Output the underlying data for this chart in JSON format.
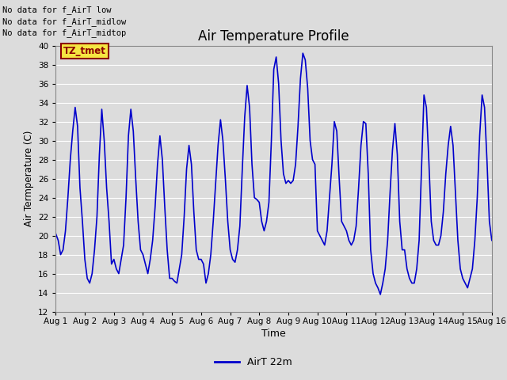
{
  "title": "Air Temperature Profile",
  "ylabel": "Air Termperature (C)",
  "xlabel": "Time",
  "legend_label": "AirT 22m",
  "line_color": "#0000CC",
  "background_color": "#DCDCDC",
  "ylim": [
    12,
    40
  ],
  "no_data_texts": [
    "No data for f_AirT low",
    "No data for f_AirT_midlow",
    "No data for f_AirT_midtop"
  ],
  "tz_label": "TZ_tmet",
  "x_tick_labels": [
    "Aug 1",
    "Aug 2",
    "Aug 3",
    "Aug 4",
    "Aug 5",
    "Aug 6",
    "Aug 7",
    "Aug 8",
    "Aug 9",
    "Aug 10",
    "Aug 11",
    "Aug 12",
    "Aug 13",
    "Aug 14",
    "Aug 15",
    "Aug 16"
  ],
  "time_days": [
    0.0,
    0.083,
    0.167,
    0.25,
    0.333,
    0.417,
    0.5,
    0.583,
    0.667,
    0.75,
    0.833,
    0.917,
    1.0,
    1.083,
    1.167,
    1.25,
    1.333,
    1.417,
    1.5,
    1.583,
    1.667,
    1.75,
    1.833,
    1.917,
    2.0,
    2.083,
    2.167,
    2.25,
    2.333,
    2.417,
    2.5,
    2.583,
    2.667,
    2.75,
    2.833,
    2.917,
    3.0,
    3.083,
    3.167,
    3.25,
    3.333,
    3.417,
    3.5,
    3.583,
    3.667,
    3.75,
    3.833,
    3.917,
    4.0,
    4.083,
    4.167,
    4.25,
    4.333,
    4.417,
    4.5,
    4.583,
    4.667,
    4.75,
    4.833,
    4.917,
    5.0,
    5.083,
    5.167,
    5.25,
    5.333,
    5.417,
    5.5,
    5.583,
    5.667,
    5.75,
    5.833,
    5.917,
    6.0,
    6.083,
    6.167,
    6.25,
    6.333,
    6.417,
    6.5,
    6.583,
    6.667,
    6.75,
    6.833,
    6.917,
    7.0,
    7.083,
    7.167,
    7.25,
    7.333,
    7.417,
    7.5,
    7.583,
    7.667,
    7.75,
    7.833,
    7.917,
    8.0,
    8.083,
    8.167,
    8.25,
    8.333,
    8.417,
    8.5,
    8.583,
    8.667,
    8.75,
    8.833,
    8.917,
    9.0,
    9.083,
    9.167,
    9.25,
    9.333,
    9.417,
    9.5,
    9.583,
    9.667,
    9.75,
    9.833,
    9.917,
    10.0,
    10.083,
    10.167,
    10.25,
    10.333,
    10.417,
    10.5,
    10.583,
    10.667,
    10.75,
    10.833,
    10.917,
    11.0,
    11.083,
    11.167,
    11.25,
    11.333,
    11.417,
    11.5,
    11.583,
    11.667,
    11.75,
    11.833,
    11.917,
    12.0,
    12.083,
    12.167,
    12.25,
    12.333,
    12.417,
    12.5,
    12.583,
    12.667,
    12.75,
    12.833,
    12.917,
    13.0,
    13.083,
    13.167,
    13.25,
    13.333,
    13.417,
    13.5,
    13.583,
    13.667,
    13.75,
    13.833,
    13.917,
    14.0,
    14.083,
    14.167,
    14.25,
    14.333,
    14.417,
    14.5,
    14.583,
    14.667,
    14.75,
    14.833,
    14.917,
    15.0
  ],
  "temp_values": [
    20.2,
    19.5,
    18.0,
    18.5,
    20.5,
    24.0,
    28.0,
    31.0,
    33.5,
    31.5,
    25.0,
    21.5,
    17.5,
    15.5,
    15.0,
    16.0,
    18.5,
    22.0,
    28.5,
    33.3,
    30.0,
    25.0,
    21.5,
    17.0,
    17.5,
    16.5,
    16.0,
    17.5,
    19.0,
    24.0,
    30.5,
    33.3,
    31.0,
    26.0,
    21.5,
    18.5,
    18.0,
    17.0,
    16.0,
    17.5,
    19.5,
    23.0,
    27.5,
    30.5,
    28.0,
    23.0,
    18.5,
    15.5,
    15.5,
    15.2,
    15.0,
    16.5,
    18.0,
    22.0,
    27.0,
    29.5,
    27.5,
    22.5,
    18.5,
    17.5,
    17.5,
    17.0,
    15.0,
    16.0,
    18.0,
    21.5,
    25.5,
    29.5,
    32.2,
    30.0,
    26.0,
    21.5,
    18.5,
    17.5,
    17.2,
    18.5,
    21.0,
    27.0,
    32.5,
    35.8,
    33.5,
    27.5,
    24.0,
    23.8,
    23.5,
    21.5,
    20.5,
    21.5,
    23.5,
    30.0,
    37.5,
    38.8,
    36.0,
    30.0,
    26.5,
    25.5,
    25.8,
    25.5,
    25.8,
    27.5,
    31.5,
    36.5,
    39.2,
    38.5,
    35.5,
    30.0,
    28.0,
    27.5,
    20.5,
    20.0,
    19.5,
    19.0,
    20.5,
    24.0,
    27.5,
    32.0,
    31.0,
    26.0,
    21.5,
    21.0,
    20.5,
    19.5,
    19.0,
    19.5,
    21.0,
    25.0,
    29.5,
    32.0,
    31.8,
    26.5,
    18.5,
    16.0,
    15.0,
    14.5,
    13.8,
    15.0,
    16.5,
    19.5,
    24.5,
    29.0,
    31.8,
    28.5,
    21.5,
    18.5,
    18.5,
    16.5,
    15.5,
    15.0,
    15.0,
    16.5,
    19.5,
    27.0,
    34.8,
    33.5,
    28.0,
    21.5,
    19.5,
    19.0,
    19.0,
    20.0,
    22.5,
    26.5,
    29.5,
    31.5,
    29.5,
    24.5,
    19.5,
    16.5,
    15.5,
    15.0,
    14.5,
    15.5,
    16.5,
    19.5,
    24.0,
    30.5,
    34.8,
    33.5,
    28.0,
    21.5,
    19.5
  ]
}
